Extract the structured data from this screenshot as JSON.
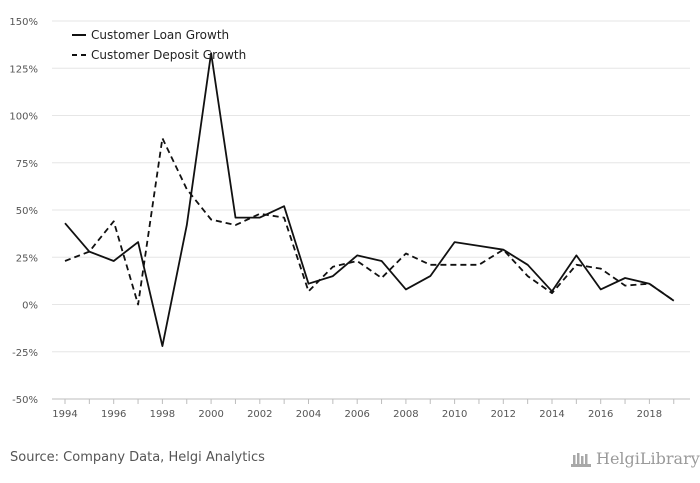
{
  "chart_data": {
    "type": "line",
    "x": [
      1994,
      1995,
      1996,
      1997,
      1998,
      1999,
      2000,
      2001,
      2002,
      2003,
      2004,
      2005,
      2006,
      2007,
      2008,
      2009,
      2010,
      2011,
      2012,
      2013,
      2014,
      2015,
      2016,
      2017,
      2018,
      2019
    ],
    "x_ticks": [
      "1994",
      "1996",
      "1998",
      "2000",
      "2002",
      "2004",
      "2006",
      "2008",
      "2010",
      "2012",
      "2014",
      "2016",
      "2018"
    ],
    "y_ticks": [
      "150%",
      "125%",
      "100%",
      "75%",
      "50%",
      "25%",
      "0%",
      "-25%",
      "-50%"
    ],
    "ylim": [
      -50,
      150
    ],
    "series": [
      {
        "name": "Customer Loan Growth",
        "style": "solid",
        "color": "#111111",
        "values": [
          43,
          28,
          23,
          33,
          -22,
          42,
          133,
          46,
          46,
          52,
          11,
          15,
          26,
          23,
          8,
          15,
          33,
          31,
          29,
          21,
          7,
          26,
          8,
          14,
          11,
          2
        ]
      },
      {
        "name": "Customer Deposit Growth",
        "style": "dashed",
        "color": "#111111",
        "values": [
          23,
          28,
          44,
          0,
          88,
          61,
          45,
          42,
          48,
          46,
          7,
          20,
          23,
          14,
          27,
          21,
          21,
          21,
          29,
          15,
          6,
          21,
          19,
          10,
          11,
          2
        ]
      }
    ],
    "legend_position": "top-left",
    "grid": true
  },
  "footer": {
    "source": "Source: Company Data, Helgi Analytics",
    "brand": "HelgiLibrary"
  }
}
